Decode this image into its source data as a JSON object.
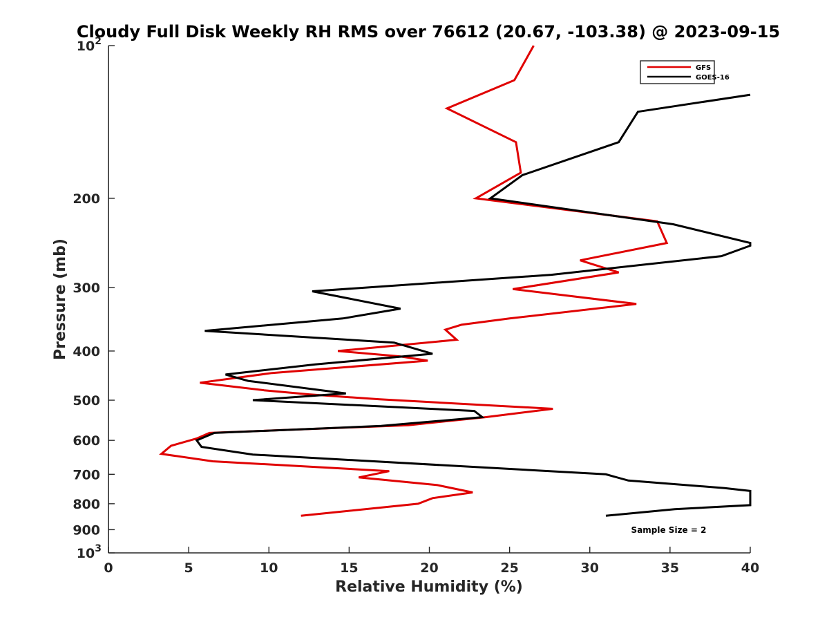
{
  "chart_data": {
    "type": "line",
    "title": "Cloudy Full Disk Weekly RH RMS over 76612 (20.67, -103.38) @ 2023-09-15",
    "xlabel": "Relative Humidity (%)",
    "ylabel": "Pressure (mb)",
    "xlim": [
      0,
      40
    ],
    "ylim": [
      100,
      1000
    ],
    "yscale": "log",
    "y_reversed": true,
    "x_ticks": [
      0,
      5,
      10,
      15,
      20,
      25,
      30,
      35,
      40
    ],
    "x_tick_labels": [
      "0",
      "5",
      "10",
      "15",
      "20",
      "25",
      "30",
      "35",
      "40"
    ],
    "y_ticks": [
      {
        "value": 100,
        "base": "10",
        "exp": "2"
      },
      {
        "value": 200,
        "label": "200"
      },
      {
        "value": 300,
        "label": "300"
      },
      {
        "value": 400,
        "label": "400"
      },
      {
        "value": 500,
        "label": "500"
      },
      {
        "value": 600,
        "label": "600"
      },
      {
        "value": 700,
        "label": "700"
      },
      {
        "value": 800,
        "label": "800"
      },
      {
        "value": 900,
        "label": "900"
      },
      {
        "value": 1000,
        "base": "10",
        "exp": "3"
      }
    ],
    "legend_position": "top-right",
    "sample_size_text": "Sample Size = 2",
    "series": [
      {
        "name": "GFS",
        "color": "#e00000",
        "points": [
          [
            26.5,
            100
          ],
          [
            25.3,
            117
          ],
          [
            21.1,
            133
          ],
          [
            25.4,
            155
          ],
          [
            25.7,
            178
          ],
          [
            22.9,
            200
          ],
          [
            34.2,
            222
          ],
          [
            34.8,
            245
          ],
          [
            29.4,
            265
          ],
          [
            31.8,
            280
          ],
          [
            25.2,
            302
          ],
          [
            32.9,
            323
          ],
          [
            25.0,
            345
          ],
          [
            22.0,
            355
          ],
          [
            21.0,
            363
          ],
          [
            21.7,
            380
          ],
          [
            14.3,
            400
          ],
          [
            18.2,
            410
          ],
          [
            19.9,
            418
          ],
          [
            10.2,
            442
          ],
          [
            5.7,
            462
          ],
          [
            9.7,
            478
          ],
          [
            12.5,
            487
          ],
          [
            16.9,
            498
          ],
          [
            27.7,
            520
          ],
          [
            23.5,
            540
          ],
          [
            18.7,
            560
          ],
          [
            6.3,
            580
          ],
          [
            5.5,
            595
          ],
          [
            3.9,
            615
          ],
          [
            3.3,
            638
          ],
          [
            6.5,
            660
          ],
          [
            17.5,
            690
          ],
          [
            15.6,
            710
          ],
          [
            20.5,
            735
          ],
          [
            22.7,
            760
          ],
          [
            20.2,
            780
          ],
          [
            19.3,
            800
          ],
          [
            12.0,
            845
          ]
        ]
      },
      {
        "name": "GOES-16",
        "color": "#000000",
        "points": [
          [
            40.0,
            125
          ],
          [
            33.0,
            135
          ],
          [
            31.8,
            155
          ],
          [
            25.8,
            180
          ],
          [
            23.8,
            200
          ],
          [
            35.2,
            225
          ],
          [
            40.0,
            245
          ],
          [
            40.0,
            248
          ],
          [
            38.2,
            260
          ],
          [
            27.6,
            283
          ],
          [
            12.7,
            305
          ],
          [
            18.2,
            330
          ],
          [
            14.6,
            345
          ],
          [
            6.0,
            365
          ],
          [
            17.8,
            385
          ],
          [
            20.2,
            405
          ],
          [
            12.9,
            425
          ],
          [
            7.3,
            445
          ],
          [
            8.7,
            458
          ],
          [
            14.8,
            485
          ],
          [
            9.0,
            500
          ],
          [
            22.8,
            525
          ],
          [
            23.3,
            540
          ],
          [
            17.0,
            562
          ],
          [
            6.6,
            580
          ],
          [
            5.5,
            600
          ],
          [
            5.8,
            618
          ],
          [
            9.0,
            640
          ],
          [
            31.0,
            700
          ],
          [
            32.4,
            720
          ],
          [
            38.4,
            745
          ],
          [
            40.0,
            755
          ],
          [
            40.0,
            805
          ],
          [
            35.3,
            820
          ],
          [
            31.0,
            845
          ]
        ]
      }
    ]
  }
}
